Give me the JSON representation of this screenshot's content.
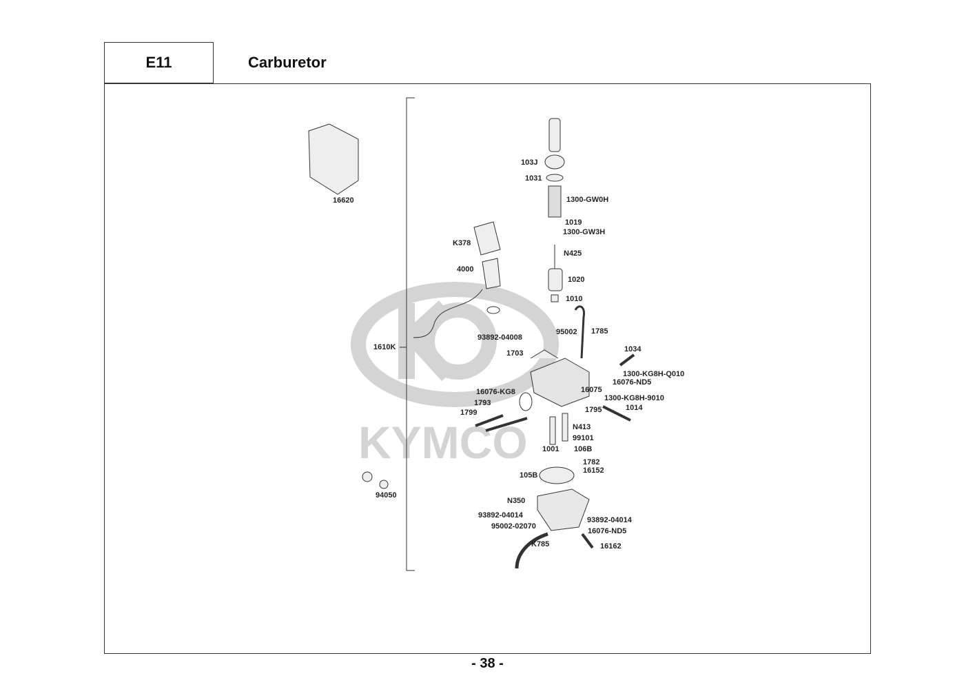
{
  "header": {
    "section_code": "E11",
    "title": "Carburetor"
  },
  "page_number": "- 38 -",
  "watermark": "KYMCO",
  "parts": [
    "16620",
    "103J",
    "1031",
    "1300-GW0H",
    "1019",
    "1300-GW3H",
    "K378",
    "N425",
    "4000",
    "1020",
    "1010",
    "1785",
    "95002",
    "93892-04008",
    "1610K",
    "1703",
    "1034",
    "1300-KG8H-Q010",
    "16076-ND5",
    "16075",
    "16076-KG8",
    "1300-KG8H-9010",
    "1793",
    "1795",
    "1014",
    "1799",
    "N413",
    "99101",
    "1001",
    "106B",
    "1782",
    "16152",
    "105B",
    "94050",
    "N350",
    "93892-04014",
    "93892-04014",
    "95002-02070",
    "16076-ND5",
    "K785",
    "16162"
  ]
}
